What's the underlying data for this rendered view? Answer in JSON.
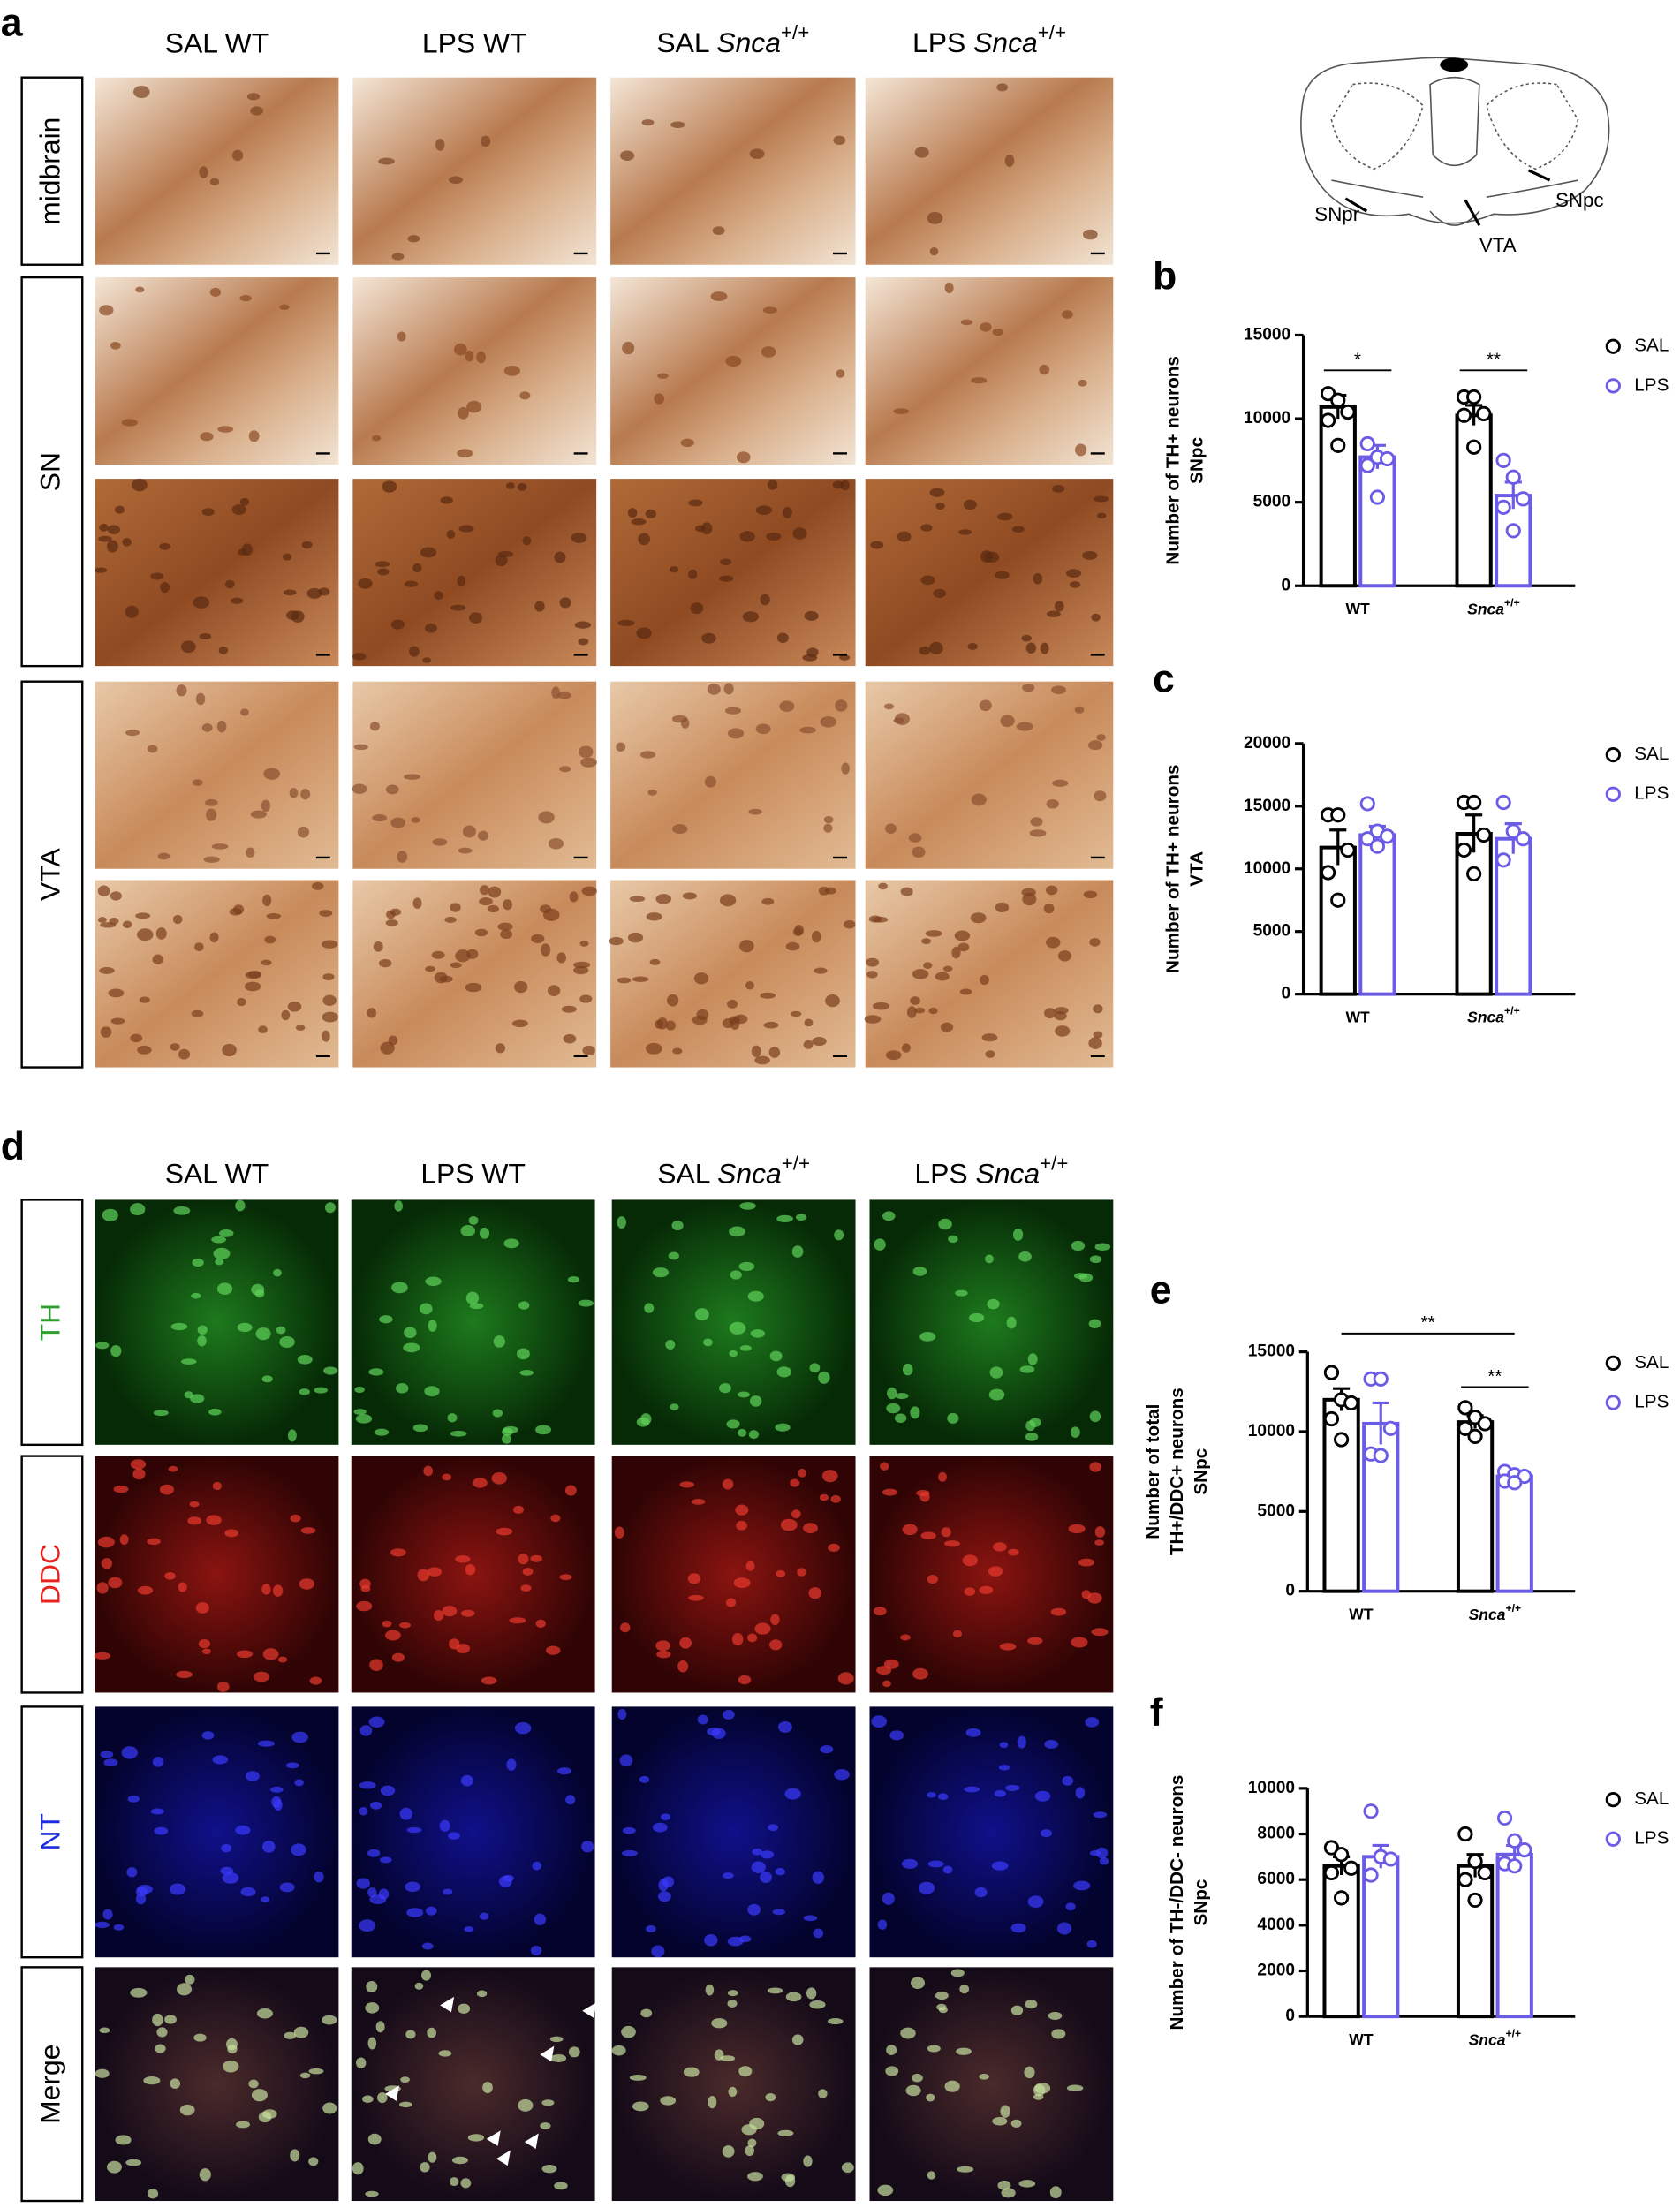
{
  "panel_labels": [
    "a",
    "b",
    "c",
    "d",
    "e",
    "f"
  ],
  "panel_a": {
    "columns": [
      "SAL WT",
      "LPS WT",
      "SAL Snca+/+",
      "LPS Snca+/+"
    ],
    "rows": [
      "midbrain",
      "SN",
      "VTA"
    ]
  },
  "diagram": {
    "labels": [
      "SNpr",
      "VTA",
      "SNpc"
    ]
  },
  "panel_d": {
    "columns": [
      "SAL WT",
      "LPS WT",
      "SAL Snca+/+",
      "LPS Snca+/+"
    ],
    "rows": [
      "TH",
      "DDC",
      "NT",
      "Merge"
    ],
    "row_colors": [
      "#2e9e2e",
      "#e8231e",
      "#1f2de0",
      "#000000"
    ]
  },
  "chart_data": [
    {
      "type": "bar",
      "y_label": [
        "Number of TH+ neurons",
        "SNpc"
      ],
      "categories": [
        "WT",
        "Snca+/+"
      ],
      "ylim": [
        0,
        15000
      ],
      "yticks": [
        0,
        5000,
        10000,
        15000
      ],
      "significance": [
        "*",
        "**"
      ],
      "series": [
        {
          "name": "SAL",
          "color": "#000000",
          "values": [
            10700,
            10200
          ],
          "errors": [
            700,
            600
          ],
          "points": [
            [
              11500,
              11100,
              10400,
              9900,
              8400
            ],
            [
              11300,
              11300,
              10300,
              10200,
              8300
            ]
          ]
        },
        {
          "name": "LPS",
          "color": "#6b5ce7",
          "values": [
            7700,
            5400
          ],
          "errors": [
            700,
            800
          ],
          "points": [
            [
              8500,
              7700,
              7600,
              7200,
              5300
            ],
            [
              7500,
              6500,
              5200,
              4700,
              3300
            ]
          ]
        }
      ]
    },
    {
      "type": "bar",
      "y_label": [
        "Number of TH+ neurons",
        "VTA"
      ],
      "categories": [
        "WT",
        "Snca+/+"
      ],
      "ylim": [
        0,
        20000
      ],
      "yticks": [
        0,
        5000,
        10000,
        15000,
        20000
      ],
      "series": [
        {
          "name": "SAL",
          "color": "#000000",
          "values": [
            11700,
            12800
          ],
          "errors": [
            1400,
            1500
          ],
          "points": [
            [
              14300,
              14300,
              11500,
              9700,
              7500
            ],
            [
              15300,
              15300,
              12700,
              11500,
              9600
            ]
          ]
        },
        {
          "name": "LPS",
          "color": "#6b5ce7",
          "values": [
            12700,
            12400
          ],
          "errors": [
            700,
            1200
          ],
          "points": [
            [
              15200,
              13000,
              12600,
              12400,
              11800
            ],
            [
              15300,
              13000,
              12400,
              10700
            ]
          ]
        }
      ]
    },
    {
      "type": "bar",
      "y_label": [
        "Number of total",
        "TH+/DDC+ neurons",
        "SNpc"
      ],
      "categories": [
        "WT",
        "Snca+/+"
      ],
      "ylim": [
        0,
        15000
      ],
      "yticks": [
        0,
        5000,
        10000,
        15000
      ],
      "significance": [
        null,
        "**"
      ],
      "overall_significance": "**",
      "series": [
        {
          "name": "SAL",
          "color": "#000000",
          "values": [
            12000,
            10600
          ],
          "errors": [
            700,
            400
          ],
          "points": [
            [
              13700,
              12000,
              11800,
              10800,
              9500
            ],
            [
              11500,
              10900,
              10500,
              10200,
              9700
            ]
          ]
        },
        {
          "name": "LPS",
          "color": "#6b5ce7",
          "values": [
            10500,
            7200
          ],
          "errors": [
            1300,
            200
          ],
          "points": [
            [
              13300,
              13300,
              10200,
              8600,
              8500
            ],
            [
              7500,
              7300,
              7200,
              6900,
              6800
            ]
          ]
        }
      ]
    },
    {
      "type": "bar",
      "y_label": [
        "Number of TH-/DDC- neurons",
        "SNpc"
      ],
      "categories": [
        "WT",
        "Snca+/+"
      ],
      "ylim": [
        0,
        10000
      ],
      "yticks": [
        0,
        2000,
        4000,
        6000,
        8000,
        10000
      ],
      "series": [
        {
          "name": "SAL",
          "color": "#000000",
          "values": [
            6600,
            6600
          ],
          "errors": [
            400,
            500
          ],
          "points": [
            [
              7400,
              7100,
              6500,
              6300,
              5200
            ],
            [
              8000,
              6800,
              6300,
              6000,
              5100
            ]
          ]
        },
        {
          "name": "LPS",
          "color": "#6b5ce7",
          "values": [
            7000,
            7100
          ],
          "errors": [
            500,
            400
          ],
          "points": [
            [
              9000,
              7000,
              6900,
              6200
            ],
            [
              8700,
              7700,
              7300,
              6700,
              6600
            ]
          ]
        }
      ]
    }
  ]
}
